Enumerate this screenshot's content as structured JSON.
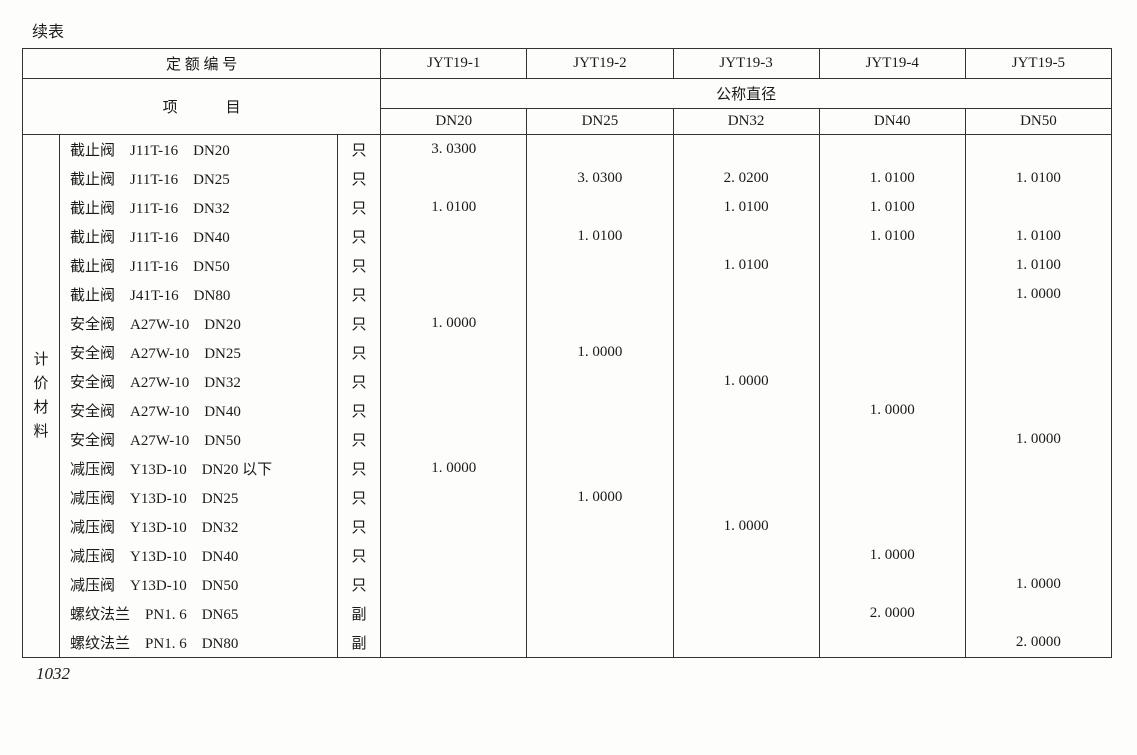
{
  "caption": "续表",
  "header": {
    "quota_label": "定 额 编 号",
    "item_label": "项目",
    "diameter_label": "公称直径",
    "codes": [
      "JYT19-1",
      "JYT19-2",
      "JYT19-3",
      "JYT19-4",
      "JYT19-5"
    ],
    "dn_cols": [
      "DN20",
      "DN25",
      "DN32",
      "DN40",
      "DN50"
    ]
  },
  "side_label": "计价材料",
  "rows": [
    {
      "desc": "截止阀　J11T-16　DN20",
      "unit": "只",
      "v": [
        "3. 0300",
        "",
        "",
        "",
        ""
      ]
    },
    {
      "desc": "截止阀　J11T-16　DN25",
      "unit": "只",
      "v": [
        "",
        "3. 0300",
        "2. 0200",
        "1. 0100",
        "1. 0100"
      ]
    },
    {
      "desc": "截止阀　J11T-16　DN32",
      "unit": "只",
      "v": [
        "1. 0100",
        "",
        "1. 0100",
        "1. 0100",
        ""
      ]
    },
    {
      "desc": "截止阀　J11T-16　DN40",
      "unit": "只",
      "v": [
        "",
        "1. 0100",
        "",
        "1. 0100",
        "1. 0100"
      ]
    },
    {
      "desc": "截止阀　J11T-16　DN50",
      "unit": "只",
      "v": [
        "",
        "",
        "1. 0100",
        "",
        "1. 0100"
      ]
    },
    {
      "desc": "截止阀　J41T-16　DN80",
      "unit": "只",
      "v": [
        "",
        "",
        "",
        "",
        "1. 0000"
      ]
    },
    {
      "desc": "安全阀　A27W-10　DN20",
      "unit": "只",
      "v": [
        "1. 0000",
        "",
        "",
        "",
        ""
      ]
    },
    {
      "desc": "安全阀　A27W-10　DN25",
      "unit": "只",
      "v": [
        "",
        "1. 0000",
        "",
        "",
        ""
      ]
    },
    {
      "desc": "安全阀　A27W-10　DN32",
      "unit": "只",
      "v": [
        "",
        "",
        "1. 0000",
        "",
        ""
      ]
    },
    {
      "desc": "安全阀　A27W-10　DN40",
      "unit": "只",
      "v": [
        "",
        "",
        "",
        "1. 0000",
        ""
      ]
    },
    {
      "desc": "安全阀　A27W-10　DN50",
      "unit": "只",
      "v": [
        "",
        "",
        "",
        "",
        "1. 0000"
      ]
    },
    {
      "desc": "减压阀　Y13D-10　DN20 以下",
      "unit": "只",
      "v": [
        "1. 0000",
        "",
        "",
        "",
        ""
      ]
    },
    {
      "desc": "减压阀　Y13D-10　DN25",
      "unit": "只",
      "v": [
        "",
        "1. 0000",
        "",
        "",
        ""
      ]
    },
    {
      "desc": "减压阀　Y13D-10　DN32",
      "unit": "只",
      "v": [
        "",
        "",
        "1. 0000",
        "",
        ""
      ]
    },
    {
      "desc": "减压阀　Y13D-10　DN40",
      "unit": "只",
      "v": [
        "",
        "",
        "",
        "1. 0000",
        ""
      ]
    },
    {
      "desc": "减压阀　Y13D-10　DN50",
      "unit": "只",
      "v": [
        "",
        "",
        "",
        "",
        "1. 0000"
      ]
    },
    {
      "desc": "螺纹法兰　PN1. 6　DN65",
      "unit": "副",
      "v": [
        "",
        "",
        "",
        "2. 0000",
        ""
      ]
    },
    {
      "desc": "螺纹法兰　PN1. 6　DN80",
      "unit": "副",
      "v": [
        "",
        "",
        "",
        "",
        "2. 0000"
      ]
    }
  ],
  "page_number": "1032"
}
